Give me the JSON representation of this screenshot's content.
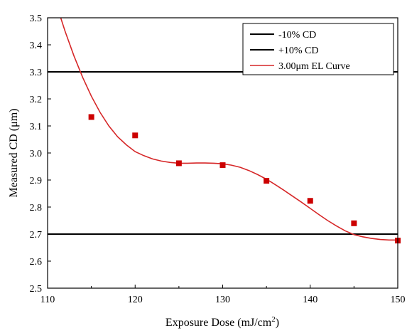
{
  "chart_data": {
    "type": "scatter",
    "title": "",
    "xlabel_main": "Exposure Dose (mJ/cm",
    "xlabel_sup": "2",
    "xlabel_end": ")",
    "ylabel": "Measured CD (μm)",
    "xlim": [
      110,
      150
    ],
    "ylim": [
      2.5,
      3.5
    ],
    "x_ticks": [
      110,
      120,
      130,
      140,
      150
    ],
    "y_ticks": [
      2.5,
      2.6,
      2.7,
      2.8,
      2.9,
      3.0,
      3.1,
      3.2,
      3.3,
      3.4,
      3.5
    ],
    "x_tick_labels": [
      "110",
      "120",
      "130",
      "140",
      "150"
    ],
    "y_tick_labels": [
      "2.5",
      "2.6",
      "2.7",
      "2.8",
      "2.9",
      "3.0",
      "3.1",
      "3.2",
      "3.3",
      "3.4",
      "3.5"
    ],
    "grid": false,
    "legend_position": "top-right",
    "reference_lines": [
      {
        "name": "-10% CD",
        "y": 2.7,
        "color": "#000000"
      },
      {
        "name": "+10% CD",
        "y": 3.3,
        "color": "#000000"
      }
    ],
    "curve": {
      "name": "3.00μm EL Curve",
      "color": "#d62728",
      "x": [
        111.5,
        112.0,
        113.0,
        114.0,
        115.0,
        116.0,
        117.0,
        118.0,
        119.0,
        120.0,
        121.0,
        122.0,
        123.0,
        124.0,
        125.0,
        126.0,
        127.0,
        128.0,
        129.0,
        130.0,
        131.0,
        132.0,
        133.0,
        134.0,
        135.0,
        136.0,
        137.0,
        138.0,
        139.0,
        140.0,
        141.0,
        142.0,
        143.0,
        144.0,
        145.0,
        146.0,
        147.0,
        148.0,
        149.0,
        150.0
      ],
      "y": [
        3.5,
        3.45,
        3.36,
        3.28,
        3.21,
        3.15,
        3.1,
        3.06,
        3.03,
        3.005,
        2.99,
        2.978,
        2.97,
        2.965,
        2.962,
        2.962,
        2.963,
        2.963,
        2.962,
        2.96,
        2.955,
        2.947,
        2.935,
        2.92,
        2.903,
        2.883,
        2.862,
        2.84,
        2.818,
        2.795,
        2.772,
        2.75,
        2.73,
        2.712,
        2.698,
        2.69,
        2.684,
        2.68,
        2.678,
        2.678
      ]
    },
    "points": {
      "color": "#cc0000",
      "x": [
        115,
        120,
        125,
        130,
        135,
        140,
        145,
        150
      ],
      "y": [
        3.133,
        3.065,
        2.962,
        2.955,
        2.897,
        2.823,
        2.74,
        2.676
      ]
    },
    "legend_entries": [
      "-10% CD",
      "+10% CD",
      "3.00μm EL Curve"
    ]
  }
}
